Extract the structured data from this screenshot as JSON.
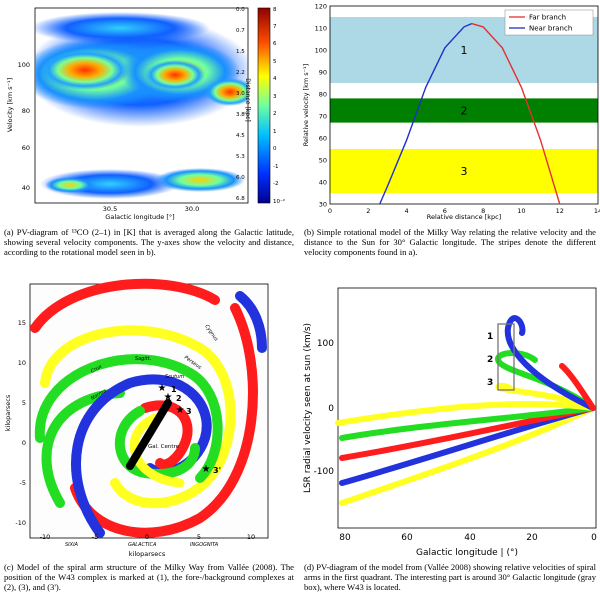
{
  "panel_a": {
    "ylabel": "Velocity [km s⁻¹]",
    "xlabel": "Galactic longitude [°]",
    "yticks": [
      "100",
      "80",
      "60",
      "40"
    ],
    "xticks": [
      "30.5",
      "30.0"
    ],
    "right_label": "Distance [kpc]",
    "right_ticks": [
      "0.0",
      "0.7",
      "1.5",
      "2.2",
      "3.0",
      "3.8",
      "4.5",
      "5.3",
      "6.0",
      "6.8"
    ],
    "cbar_ticks": [
      "8",
      "7",
      "6",
      "5",
      "4",
      "3",
      "2",
      "1",
      "0",
      "-1",
      "-2",
      "10⁻²"
    ],
    "caption": "(a) PV-diagram of ¹³CO (2–1) in [K] that is averaged along the Galactic latitude, showing several velocity components. The y-axes show the velocity and distance, according to the rotational model seen in b)."
  },
  "chart_data": {
    "type": "line",
    "title": "",
    "xlabel": "Relative distance [kpc]",
    "ylabel": "Relative velocity [km s⁻¹]",
    "xlim": [
      0,
      14
    ],
    "ylim": [
      30,
      120
    ],
    "xticks": [
      "0",
      "2",
      "4",
      "6",
      "8",
      "10",
      "12",
      "14"
    ],
    "yticks": [
      "30",
      "40",
      "50",
      "60",
      "70",
      "80",
      "90",
      "100",
      "110",
      "120"
    ],
    "legend": "top-right",
    "series": [
      {
        "name": "Far branch",
        "color": "#e53030",
        "x": [
          7.4,
          8,
          9,
          10,
          11,
          12
        ],
        "y": [
          112,
          110.5,
          101,
          83,
          59,
          30
        ]
      },
      {
        "name": "Near branch",
        "color": "#2030c8",
        "x": [
          2.6,
          3,
          4,
          5,
          6,
          7,
          7.4
        ],
        "y": [
          30,
          38,
          59,
          83,
          101,
          110.5,
          112
        ]
      }
    ],
    "bands": [
      {
        "label": "1",
        "y0": 85,
        "y1": 115,
        "color": "#add8e6"
      },
      {
        "label": "2",
        "y0": 67,
        "y1": 78,
        "color": "#008000"
      },
      {
        "label": "3",
        "y0": 35,
        "y1": 55,
        "color": "#ffff00"
      }
    ],
    "caption": "(b) Simple rotational model of the Milky Way relating the relative velocity and the distance to the Sun for 30° Galactic longitude. The stripes denote the different velocity components found in a)."
  },
  "panel_c": {
    "ylabel": "kiloparsecs",
    "xlabel": "kiloparsecs",
    "xticks": [
      "-10",
      "-5",
      "0",
      "5",
      "10"
    ],
    "yticks": [
      "15",
      "10",
      "5",
      "0",
      "-5",
      "-10"
    ],
    "arms": [
      "Cygnus",
      "Perseus",
      "Sagitt.",
      "Crux",
      "Carina",
      "Scutum",
      "Norma",
      "Sgr",
      "Crux"
    ],
    "gc": "Gal. Centre",
    "markers": [
      "1",
      "2",
      "3",
      "3'"
    ],
    "bottom": [
      "SIXIA",
      "GALACTICA",
      "INGOGNITA"
    ],
    "caption": "(c) Model of the spiral arm structure of the Milky Way from Vallée (2008). The position of the W43 complex is marked at (1), the fore-/background complexes at (2), (3), and (3')."
  },
  "panel_d": {
    "ylabel": "LSR radial velocity seen at sun (km/s)",
    "xlabel": "Galactic longitude | (°)",
    "xticks": [
      "80",
      "60",
      "40",
      "20",
      "0"
    ],
    "yticks": [
      "100",
      "0",
      "-100"
    ],
    "markers": [
      "1",
      "2",
      "3"
    ],
    "caption": "(d) PV-diagram of the model from (Vallée 2008) showing relative velocities of spiral arms in the first quadrant. The interesting part is around 30° Galactic longitude (gray box), where W43 is located."
  }
}
